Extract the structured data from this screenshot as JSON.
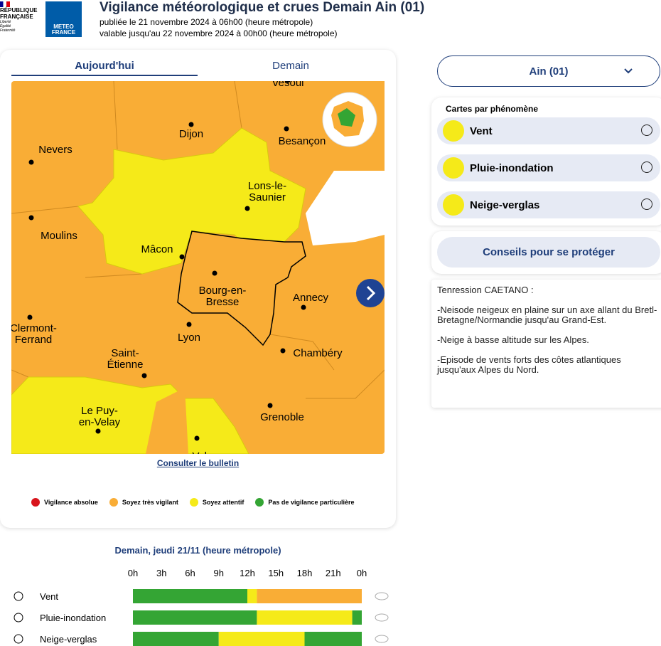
{
  "header": {
    "republique": "RÉPUBLIQUE FRANÇAISE",
    "motto": "Liberté Égalité Fraternité",
    "meteo": "METEO FRANCE",
    "title": "Vigilance météorologique et crues Demain Ain  (01)",
    "published": "publiée le 21 novembre 2024 à 06h00 (heure métropole)",
    "valid": "valable jusqu'au 22 novembre 2024 à 00h00 (heure métropole)"
  },
  "tabs": [
    "Aujourd'hui",
    "Demain"
  ],
  "cities": [
    [
      "Vesoul"
    ],
    [
      "Dijon"
    ],
    [
      "Besançon"
    ],
    [
      "Nevers"
    ],
    [
      "Lons-le-",
      "Saunier"
    ],
    [
      "Moulins"
    ],
    [
      "Mâcon"
    ],
    [
      "Bourg-en-",
      "Bresse"
    ],
    [
      "Annecy"
    ],
    [
      "Clermont-",
      "Ferrand"
    ],
    [
      "Lyon"
    ],
    [
      "Chambéry"
    ],
    [
      "Saint-",
      "Étienne"
    ],
    [
      "Le Puy-",
      "en-Velay"
    ],
    [
      "Grenoble"
    ],
    [
      "Valence"
    ]
  ],
  "bulletin_link": "Consulter le bulletin",
  "legend": [
    {
      "label": "Vigilance absolue",
      "color": "#d8141c"
    },
    {
      "label": "Soyez très vigilant",
      "color": "#f9ad36"
    },
    {
      "label": "Soyez attentif",
      "color": "#f5ea19"
    },
    {
      "label": "Pas de vigilance particulière",
      "color": "#34a534"
    }
  ],
  "dropdown": "Ain  (01)",
  "phenomena_title": "Cartes par phénomène",
  "phenomena": [
    "Vent",
    "Pluie-inondation",
    "Neige-verglas"
  ],
  "advice_button": "Conseils pour se protéger",
  "bulletin_text": [
    "Tenression CAETANO :",
    "-Neisode neigeux en plaine sur un axe allant du Bretl-Bretagne/Normandie jusqu'au Grand-Est.",
    "-Neige à basse altitude sur les Alpes.",
    "-Episode de vents forts des côtes atlantiques jusqu'aux Alpes du Nord."
  ],
  "timeline": {
    "title": "Demain, jeudi 21/11 (heure métropole)",
    "ticks": [
      "0h",
      "3h",
      "6h",
      "9h",
      "12h",
      "15h",
      "18h",
      "21h",
      "0h"
    ],
    "rows": [
      {
        "label": "Vent",
        "segments": [
          {
            "color": "#34a534",
            "hours": 12
          },
          {
            "color": "#f5ea19",
            "hours": 1
          },
          {
            "color": "#f9ad36",
            "hours": 11
          }
        ]
      },
      {
        "label": "Pluie-inondation",
        "segments": [
          {
            "color": "#34a534",
            "hours": 13
          },
          {
            "color": "#f5ea19",
            "hours": 10
          },
          {
            "color": "#34a534",
            "hours": 1
          }
        ]
      },
      {
        "label": "Neige-verglas",
        "segments": [
          {
            "color": "#34a534",
            "hours": 9
          },
          {
            "color": "#f5ea19",
            "hours": 9
          },
          {
            "color": "#34a534",
            "hours": 6
          }
        ]
      }
    ]
  }
}
